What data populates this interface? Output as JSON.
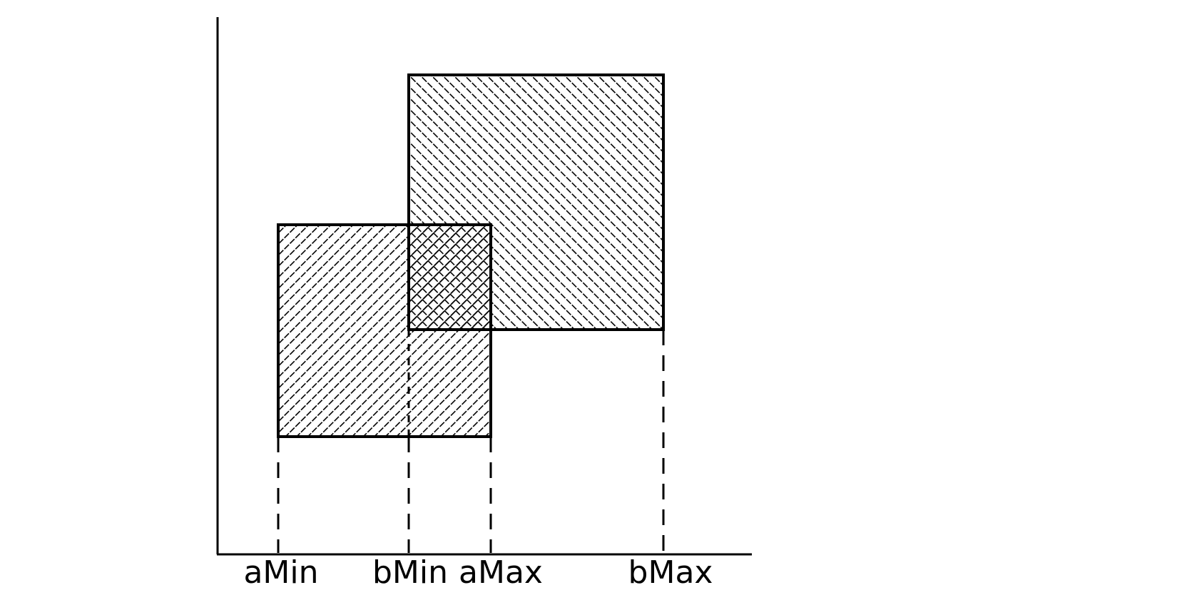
{
  "diagram": {
    "labels": {
      "a_min": "aMin",
      "b_min": "bMin",
      "a_max": "aMax",
      "b_max": "bMax"
    },
    "colors": {
      "stroke": "#000000",
      "background": "#ffffff"
    }
  }
}
